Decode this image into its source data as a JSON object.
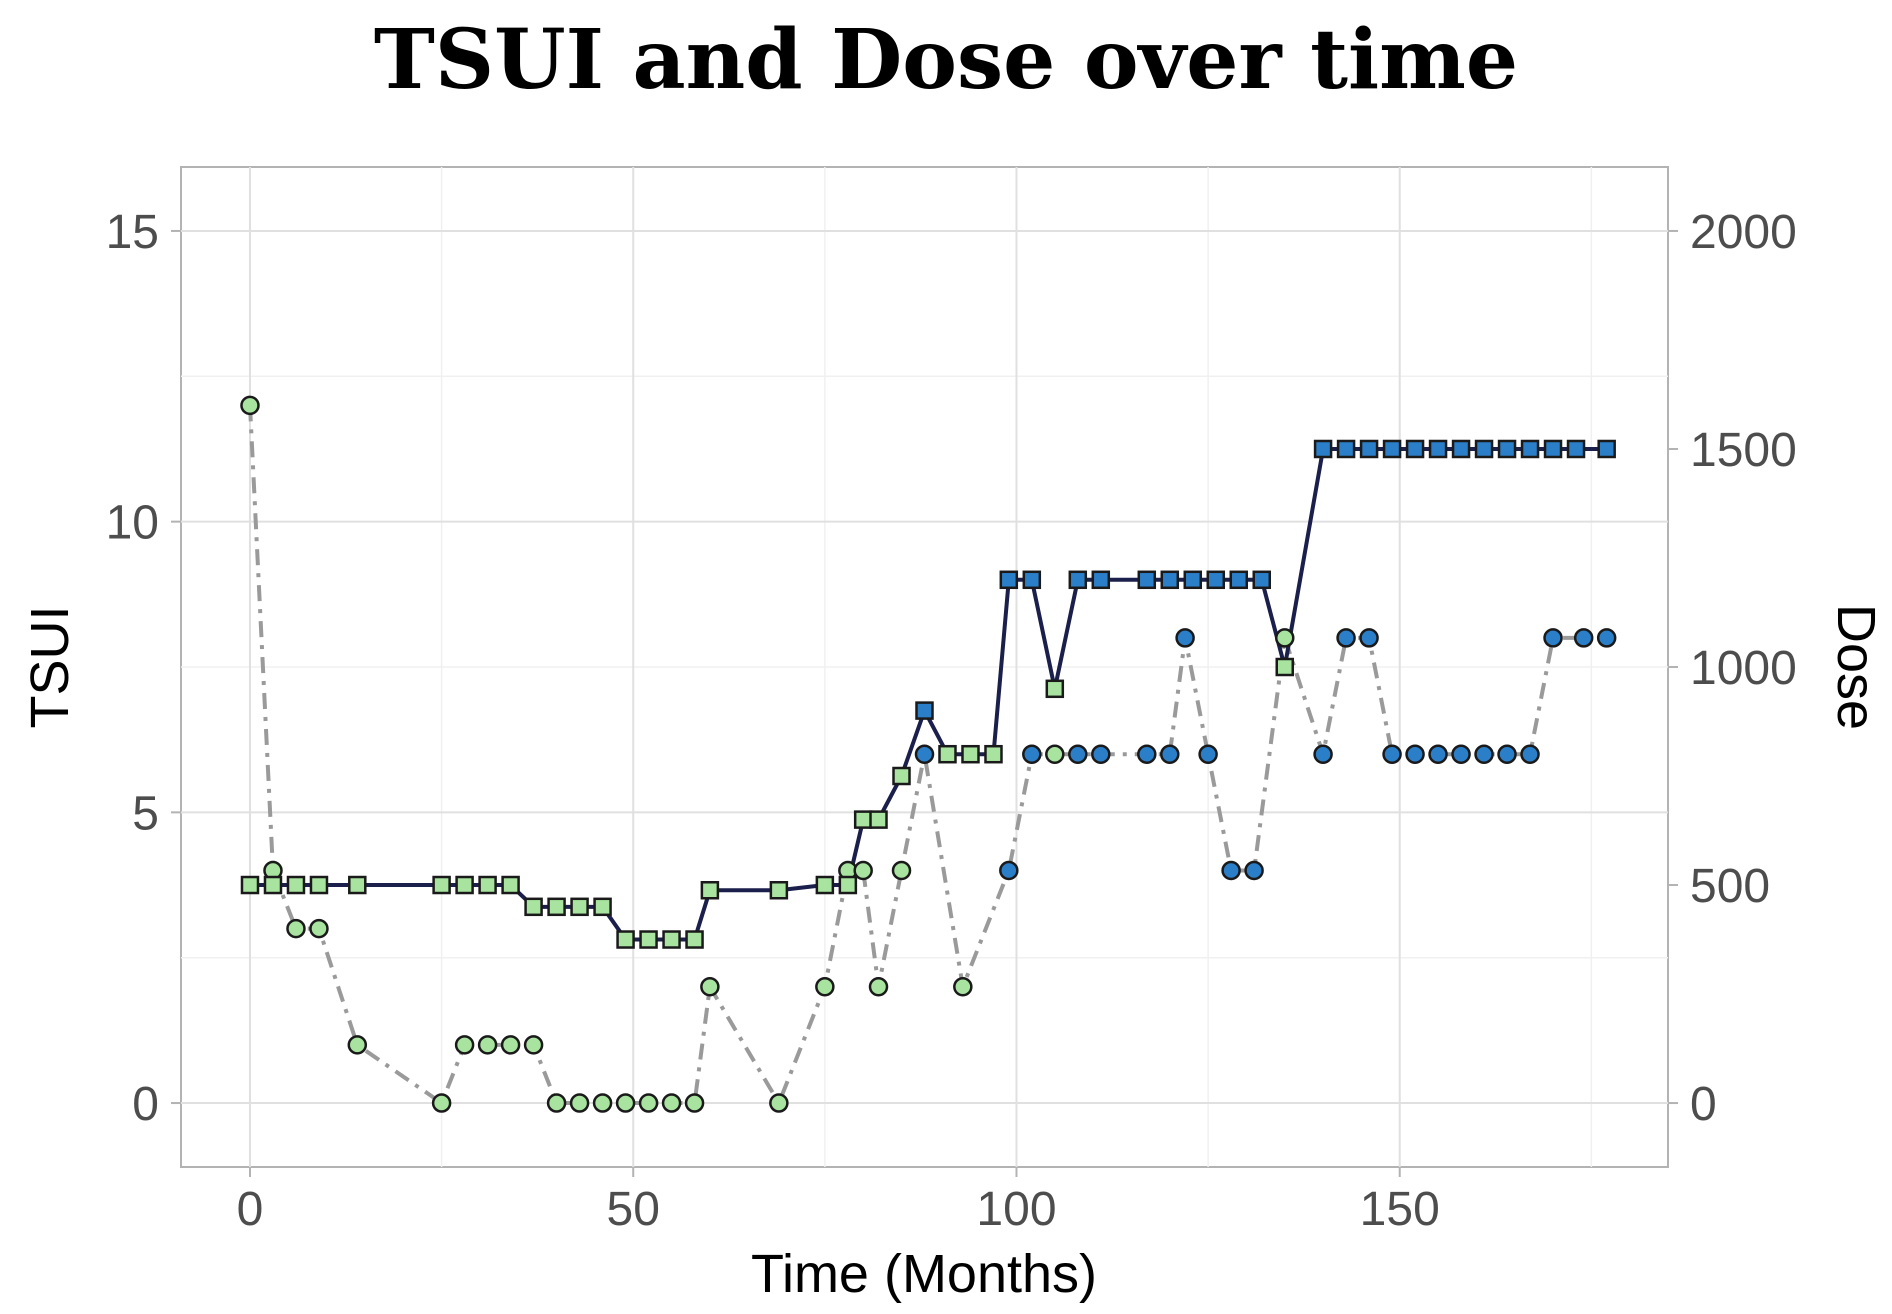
{
  "chart_data": {
    "type": "line",
    "title": "TSUI and Dose over time",
    "xlabel": "Time (Months)",
    "ylabel": "TSUI",
    "y2label": "Dose",
    "xlim": [
      -9,
      185
    ],
    "ylim": [
      -1.1,
      16.1
    ],
    "y2lim": [
      -146.7,
      2146.7
    ],
    "xticks": [
      0,
      50,
      100,
      150
    ],
    "yticks": [
      0,
      5,
      10,
      15
    ],
    "y2ticks": [
      0,
      500,
      1000,
      1500,
      2000
    ],
    "grid": true,
    "colors": {
      "tsui_line": "#9a9a9a",
      "dose_line": "#1b1f4b",
      "early_fill": "#a8e4a0",
      "late_fill": "#2b7fc9",
      "marker_edge": "#1a1a1a"
    },
    "series": [
      {
        "name": "TSUI",
        "axis": "left",
        "marker": "circle",
        "line": "dash-dot",
        "x": [
          0,
          3,
          6,
          9,
          14,
          25,
          28,
          31,
          34,
          37,
          40,
          43,
          46,
          49,
          52,
          55,
          58,
          60,
          69,
          75,
          78,
          80,
          82,
          85,
          88,
          93,
          99,
          102,
          105,
          108,
          111,
          117,
          120,
          122,
          125,
          128,
          131,
          135,
          140,
          143,
          146,
          149,
          152,
          155,
          158,
          161,
          164,
          167,
          170,
          174,
          177
        ],
        "values": [
          12,
          4,
          3,
          3,
          1,
          0,
          1,
          1,
          1,
          1,
          0,
          0,
          0,
          0,
          0,
          0,
          0,
          2,
          0,
          2,
          4,
          4,
          2,
          4,
          6,
          2,
          4,
          6,
          6,
          6,
          6,
          6,
          6,
          8,
          6,
          4,
          4,
          8,
          6,
          8,
          8,
          6,
          6,
          6,
          6,
          6,
          6,
          6,
          8,
          8,
          8
        ],
        "fill": [
          "early",
          "early",
          "early",
          "early",
          "early",
          "early",
          "early",
          "early",
          "early",
          "early",
          "early",
          "early",
          "early",
          "early",
          "early",
          "early",
          "early",
          "early",
          "early",
          "early",
          "early",
          "early",
          "early",
          "early",
          "late",
          "early",
          "late",
          "late",
          "early",
          "late",
          "late",
          "late",
          "late",
          "late",
          "late",
          "late",
          "late",
          "early",
          "late",
          "late",
          "late",
          "late",
          "late",
          "late",
          "late",
          "late",
          "late",
          "late",
          "late",
          "late",
          "late"
        ]
      },
      {
        "name": "Dose",
        "axis": "right",
        "marker": "square",
        "line": "solid",
        "x": [
          0,
          3,
          6,
          9,
          14,
          25,
          28,
          31,
          34,
          37,
          40,
          43,
          46,
          49,
          52,
          55,
          58,
          60,
          69,
          75,
          78,
          80,
          82,
          85,
          88,
          91,
          94,
          97,
          99,
          102,
          105,
          108,
          111,
          117,
          120,
          123,
          126,
          129,
          132,
          135,
          140,
          143,
          146,
          149,
          152,
          155,
          158,
          161,
          164,
          167,
          170,
          173,
          177
        ],
        "values": [
          500,
          500,
          500,
          500,
          500,
          500,
          500,
          500,
          500,
          450,
          450,
          450,
          450,
          375,
          375,
          375,
          375,
          488,
          488,
          500,
          500,
          650,
          650,
          750,
          900,
          800,
          800,
          800,
          1200,
          1200,
          950,
          1200,
          1200,
          1200,
          1200,
          1200,
          1200,
          1200,
          1200,
          1000,
          1500,
          1500,
          1500,
          1500,
          1500,
          1500,
          1500,
          1500,
          1500,
          1500,
          1500,
          1500,
          1500
        ],
        "fill": [
          "early",
          "early",
          "early",
          "early",
          "early",
          "early",
          "early",
          "early",
          "early",
          "early",
          "early",
          "early",
          "early",
          "early",
          "early",
          "early",
          "early",
          "early",
          "early",
          "early",
          "early",
          "early",
          "early",
          "early",
          "late",
          "early",
          "early",
          "early",
          "late",
          "late",
          "early",
          "late",
          "late",
          "late",
          "late",
          "late",
          "late",
          "late",
          "late",
          "early",
          "late",
          "late",
          "late",
          "late",
          "late",
          "late",
          "late",
          "late",
          "late",
          "late",
          "late",
          "late",
          "late"
        ]
      }
    ]
  }
}
